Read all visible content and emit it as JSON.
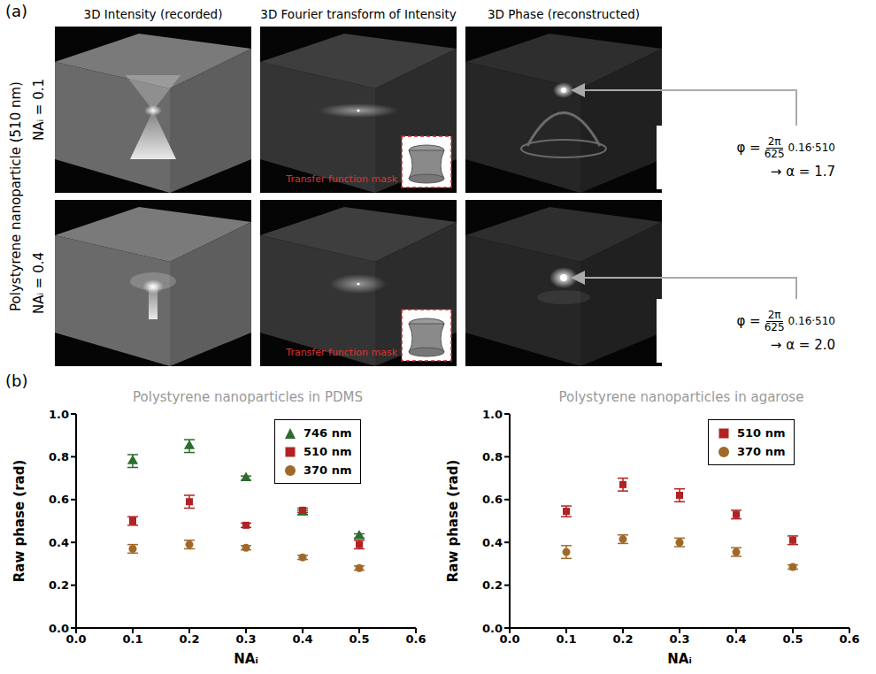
{
  "panel_a": {
    "label": "(a)",
    "columns": [
      "3D Intensity (recorded)",
      "3D Fourier transform of Intensity",
      "3D Phase (reconstructed)"
    ],
    "row_group_label": "Polystyrene nanoparticle (510 nm)",
    "rows": [
      {
        "label": "NAᵢ = 0.1",
        "mask_label": "Transfer function mask",
        "formula": {
          "lhs": "φ =",
          "numerator": "2π",
          "denominator": "625",
          "factor": "0.16·510"
        },
        "result": "→ α = 1.7"
      },
      {
        "label": "NAᵢ = 0.4",
        "mask_label": "Transfer function mask",
        "formula": {
          "lhs": "φ =",
          "numerator": "2π",
          "denominator": "625",
          "factor": "0.16·510"
        },
        "result": "→ α = 2.0"
      }
    ]
  },
  "panel_b_label": "(b)",
  "chart_data": [
    {
      "type": "scatter",
      "title": "Polystyrene nanoparticles in PDMS",
      "x_label": "NAᵢ",
      "y_label": "Raw phase (rad)",
      "x": [
        0.1,
        0.2,
        0.3,
        0.4,
        0.5
      ],
      "xlim": [
        0,
        0.6
      ],
      "xticks": [
        {
          "value": 0,
          "label": "0.0"
        },
        0.1,
        0.2,
        0.3,
        0.4,
        0.5,
        0.6
      ],
      "ylim": [
        0,
        1
      ],
      "yticks": [
        {
          "value": 0,
          "label": "0.0"
        },
        0.2,
        0.4,
        0.6,
        0.8,
        {
          "value": 1,
          "label": "1.0"
        }
      ],
      "legend": "upper right",
      "series": [
        {
          "name": "746 nm",
          "color": "#2e6b2e",
          "marker": "triangle",
          "values": [
            0.78,
            0.85,
            0.7,
            0.54,
            0.43
          ],
          "errors": [
            0.03,
            0.03,
            0.01,
            0.01,
            0.01
          ]
        },
        {
          "name": "510 nm",
          "color": "#b22222",
          "marker": "square",
          "values": [
            0.5,
            0.59,
            0.48,
            0.55,
            0.39
          ],
          "errors": [
            0.02,
            0.03,
            0.01,
            0.01,
            0.02
          ]
        },
        {
          "name": "370 nm",
          "color": "#a0692a",
          "marker": "circle",
          "values": [
            0.37,
            0.39,
            0.375,
            0.33,
            0.28
          ],
          "errors": [
            0.02,
            0.02,
            0.01,
            0.01,
            0.01
          ]
        }
      ]
    },
    {
      "type": "scatter",
      "title": "Polystyrene nanoparticles in agarose",
      "x_label": "NAᵢ",
      "y_label": "Raw phase (rad)",
      "x": [
        0.1,
        0.2,
        0.3,
        0.4,
        0.5
      ],
      "xlim": [
        0,
        0.6
      ],
      "xticks": [
        {
          "value": 0,
          "label": "0.0"
        },
        0.1,
        0.2,
        0.3,
        0.4,
        0.5,
        0.6
      ],
      "ylim": [
        0,
        1
      ],
      "yticks": [
        {
          "value": 0,
          "label": "0.0"
        },
        0.2,
        0.4,
        0.6,
        0.8,
        {
          "value": 1,
          "label": "1.0"
        }
      ],
      "legend": "upper right",
      "series": [
        {
          "name": "510 nm",
          "color": "#b22222",
          "marker": "square",
          "values": [
            0.545,
            0.67,
            0.62,
            0.53,
            0.41
          ],
          "errors": [
            0.025,
            0.03,
            0.03,
            0.02,
            0.02
          ]
        },
        {
          "name": "370 nm",
          "color": "#a0692a",
          "marker": "circle",
          "values": [
            0.355,
            0.415,
            0.4,
            0.355,
            0.285
          ],
          "errors": [
            0.03,
            0.02,
            0.02,
            0.02,
            0.01
          ]
        }
      ]
    }
  ]
}
